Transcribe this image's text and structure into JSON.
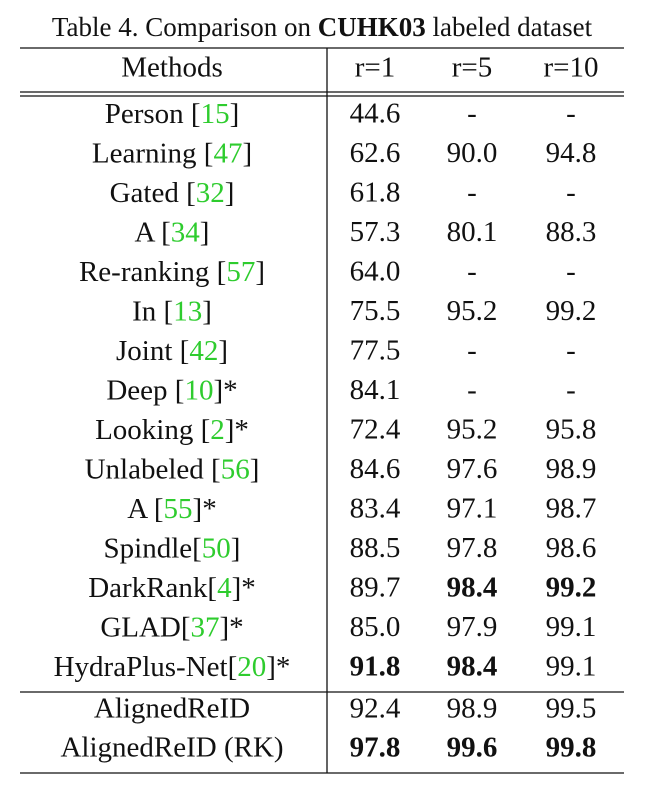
{
  "caption": {
    "prefix": "Table 4. Comparison on ",
    "dataset": "CUHK03",
    "suffix": " labeled dataset"
  },
  "table": {
    "header": [
      "Methods",
      "r=1",
      "r=5",
      "r=10"
    ],
    "ref_color": "#2ecc2e",
    "rows": [
      {
        "name": "Person [",
        "ref": "15",
        "tail": "]",
        "cells": [
          {
            "text": "44.6"
          },
          {
            "text": "-"
          },
          {
            "text": "-"
          }
        ]
      },
      {
        "name": "Learning [",
        "ref": "47",
        "tail": "]",
        "cells": [
          {
            "text": "62.6"
          },
          {
            "text": "90.0"
          },
          {
            "text": "94.8"
          }
        ]
      },
      {
        "name": "Gated [",
        "ref": "32",
        "tail": "]",
        "cells": [
          {
            "text": "61.8"
          },
          {
            "text": "-"
          },
          {
            "text": "-"
          }
        ]
      },
      {
        "name": "A [",
        "ref": "34",
        "tail": "]",
        "cells": [
          {
            "text": "57.3"
          },
          {
            "text": "80.1"
          },
          {
            "text": "88.3"
          }
        ]
      },
      {
        "name": "Re-ranking [",
        "ref": "57",
        "tail": "]",
        "cells": [
          {
            "text": "64.0"
          },
          {
            "text": "-"
          },
          {
            "text": "-"
          }
        ]
      },
      {
        "name": "In [",
        "ref": "13",
        "tail": "]",
        "cells": [
          {
            "text": "75.5"
          },
          {
            "text": "95.2"
          },
          {
            "text": "99.2"
          }
        ]
      },
      {
        "name": "Joint [",
        "ref": "42",
        "tail": "]",
        "cells": [
          {
            "text": "77.5"
          },
          {
            "text": "-"
          },
          {
            "text": "-"
          }
        ]
      },
      {
        "name": "Deep [",
        "ref": "10",
        "tail": "]*",
        "cells": [
          {
            "text": "84.1"
          },
          {
            "text": "-"
          },
          {
            "text": "-"
          }
        ]
      },
      {
        "name": "Looking [",
        "ref": "2",
        "tail": "]*",
        "cells": [
          {
            "text": "72.4"
          },
          {
            "text": "95.2"
          },
          {
            "text": "95.8"
          }
        ]
      },
      {
        "name": "Unlabeled [",
        "ref": "56",
        "tail": "]",
        "cells": [
          {
            "text": "84.6"
          },
          {
            "text": "97.6"
          },
          {
            "text": "98.9"
          }
        ]
      },
      {
        "name": "A [",
        "ref": "55",
        "tail": "]*",
        "cells": [
          {
            "text": "83.4"
          },
          {
            "text": "97.1"
          },
          {
            "text": "98.7"
          }
        ]
      },
      {
        "name": "Spindle[",
        "ref": "50",
        "tail": "]",
        "cells": [
          {
            "text": "88.5"
          },
          {
            "text": "97.8"
          },
          {
            "text": "98.6"
          }
        ]
      },
      {
        "name": "DarkRank[",
        "ref": "4",
        "tail": "]*",
        "cells": [
          {
            "text": "89.7"
          },
          {
            "text": "98.4",
            "bold": true
          },
          {
            "text": "99.2",
            "bold": true
          }
        ]
      },
      {
        "name": "GLAD[",
        "ref": "37",
        "tail": "]*",
        "cells": [
          {
            "text": "85.0"
          },
          {
            "text": "97.9"
          },
          {
            "text": "99.1"
          }
        ]
      },
      {
        "name": "HydraPlus-Net[",
        "ref": "20",
        "tail": "]*",
        "cells": [
          {
            "text": "91.8",
            "bold": true
          },
          {
            "text": "98.4",
            "bold": true
          },
          {
            "text": "99.1"
          }
        ]
      }
    ],
    "ours": [
      {
        "name": "AlignedReID",
        "cells": [
          {
            "text": "92.4"
          },
          {
            "text": "98.9"
          },
          {
            "text": "99.5"
          }
        ]
      },
      {
        "name": "AlignedReID (RK)",
        "cells": [
          {
            "text": "97.8",
            "bold": true,
            "color": "#e8202a"
          },
          {
            "text": "99.6",
            "bold": true,
            "color": "#e8202a"
          },
          {
            "text": "99.8",
            "bold": true,
            "color": "#e8202a"
          }
        ]
      }
    ]
  }
}
